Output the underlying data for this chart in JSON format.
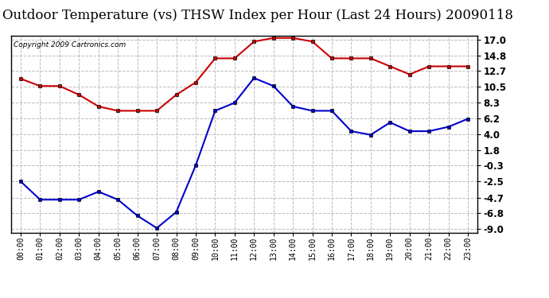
{
  "title": "Outdoor Temperature (vs) THSW Index per Hour (Last 24 Hours) 20090118",
  "copyright": "Copyright 2009 Cartronics.com",
  "hours": [
    "00:00",
    "01:00",
    "02:00",
    "03:00",
    "04:00",
    "05:00",
    "06:00",
    "07:00",
    "08:00",
    "09:00",
    "10:00",
    "11:00",
    "12:00",
    "13:00",
    "14:00",
    "15:00",
    "16:00",
    "17:00",
    "18:00",
    "19:00",
    "20:00",
    "21:00",
    "22:00",
    "23:00"
  ],
  "red_data": [
    11.6,
    10.6,
    10.6,
    9.4,
    7.8,
    7.2,
    7.2,
    7.2,
    9.4,
    11.1,
    14.4,
    14.4,
    16.7,
    17.2,
    17.2,
    16.7,
    14.4,
    14.4,
    14.4,
    13.3,
    12.2,
    13.3,
    13.3,
    13.3
  ],
  "blue_data": [
    -2.5,
    -5.0,
    -5.0,
    -5.0,
    -3.9,
    -5.0,
    -7.2,
    -8.9,
    -6.7,
    -0.3,
    7.2,
    8.3,
    11.7,
    10.6,
    7.8,
    7.2,
    7.2,
    4.4,
    3.9,
    5.6,
    4.4,
    4.4,
    5.0,
    6.1
  ],
  "red_color": "#cc0000",
  "blue_color": "#0000cc",
  "bg_color": "#ffffff",
  "grid_color": "#bbbbbb",
  "yticks": [
    -9.0,
    -6.8,
    -4.7,
    -2.5,
    -0.3,
    1.8,
    4.0,
    6.2,
    8.3,
    10.5,
    12.7,
    14.8,
    17.0
  ],
  "ylim": [
    -9.5,
    17.5
  ],
  "title_fontsize": 12,
  "marker": "s",
  "markersize": 3.5,
  "linewidth": 1.5
}
